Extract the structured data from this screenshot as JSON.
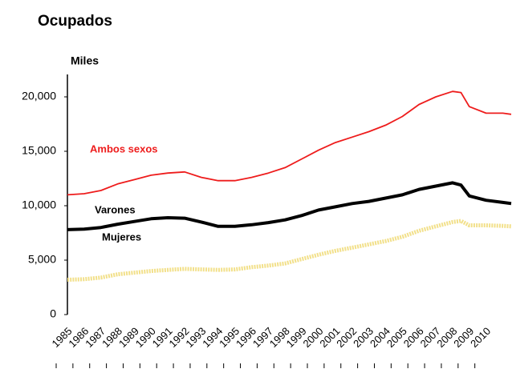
{
  "chart_data": {
    "type": "line",
    "title": "Ocupados",
    "y_label": "Miles",
    "x": [
      1985,
      1986,
      1987,
      1988,
      1989,
      1990,
      1991,
      1992,
      1993,
      1994,
      1995,
      1996,
      1997,
      1998,
      1999,
      2000,
      2001,
      2002,
      2003,
      2004,
      2005,
      2006,
      2007,
      2008,
      2008.5,
      2009,
      2010,
      2011,
      2011.5
    ],
    "series": [
      {
        "name": "Ambos sexos",
        "color": "#ee1c1c",
        "values": [
          11000,
          11100,
          11400,
          12000,
          12400,
          12800,
          13000,
          13100,
          12600,
          12300,
          12300,
          12600,
          13000,
          13500,
          14300,
          15100,
          15800,
          16300,
          16800,
          17400,
          18200,
          19300,
          20000,
          20500,
          20400,
          19100,
          18500,
          18500,
          18400
        ]
      },
      {
        "name": "Varones",
        "color": "#000000",
        "values": [
          7800,
          7850,
          8000,
          8300,
          8550,
          8800,
          8900,
          8850,
          8500,
          8100,
          8100,
          8250,
          8450,
          8700,
          9100,
          9600,
          9900,
          10200,
          10400,
          10700,
          11000,
          11500,
          11800,
          12100,
          11900,
          10900,
          10500,
          10300,
          10200
        ]
      },
      {
        "name": "Mujeres",
        "color": "#f2e08a",
        "values": [
          3200,
          3250,
          3400,
          3700,
          3850,
          4000,
          4100,
          4200,
          4150,
          4100,
          4150,
          4350,
          4500,
          4700,
          5100,
          5500,
          5850,
          6150,
          6450,
          6750,
          7150,
          7700,
          8100,
          8500,
          8600,
          8200,
          8200,
          8150,
          8100
        ]
      }
    ],
    "xlim": [
      1985,
      2011.5
    ],
    "xticks": [
      1985,
      1986,
      1987,
      1988,
      1989,
      1990,
      1991,
      1992,
      1993,
      1994,
      1995,
      1996,
      1997,
      1998,
      1999,
      2000,
      2001,
      2002,
      2003,
      2004,
      2005,
      2006,
      2007,
      2008,
      2009,
      2010
    ],
    "ylim": [
      0,
      20000
    ],
    "yticks": [
      0,
      {
        "value": 5000,
        "label": "5,000"
      },
      {
        "value": 10000,
        "label": "10,000"
      },
      {
        "value": 15000,
        "label": "15,000"
      },
      {
        "value": 20000,
        "label": "20,000"
      }
    ]
  }
}
